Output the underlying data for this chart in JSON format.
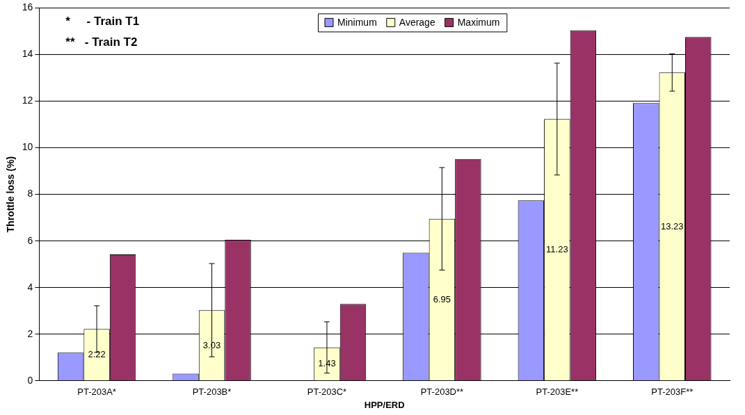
{
  "chart_data": {
    "type": "bar",
    "xlabel": "HPP/ERD",
    "ylabel": "Throttle loss (%)",
    "categories": [
      "PT-203A*",
      "PT-203B*",
      "PT-203C*",
      "PT-203D**",
      "PT-203E**",
      "PT-203F**"
    ],
    "series": [
      {
        "name": "Minimum",
        "color": "#9999ff",
        "values": [
          1.21,
          0.31,
          0,
          5.5,
          7.74,
          11.92
        ]
      },
      {
        "name": "Average",
        "color": "#ffffcc",
        "values": [
          2.22,
          3.03,
          1.43,
          6.95,
          11.23,
          13.23
        ],
        "errors": [
          1.0,
          2.0,
          1.1,
          2.2,
          2.4,
          0.8
        ],
        "value_labels": [
          "2.22",
          "3.03",
          "1.43",
          "6.95",
          "11.23",
          "13.23"
        ]
      },
      {
        "name": "Maximum",
        "color": "#993366",
        "values": [
          5.42,
          6.05,
          3.3,
          9.52,
          15.04,
          14.75
        ]
      }
    ],
    "ylim": [
      0,
      16
    ],
    "yticks": [
      0,
      2,
      4,
      6,
      8,
      10,
      12,
      14,
      16
    ],
    "grid": "y",
    "legend": "top",
    "annotations": [
      "*     - Train T1",
      "**   - Train T2"
    ]
  }
}
